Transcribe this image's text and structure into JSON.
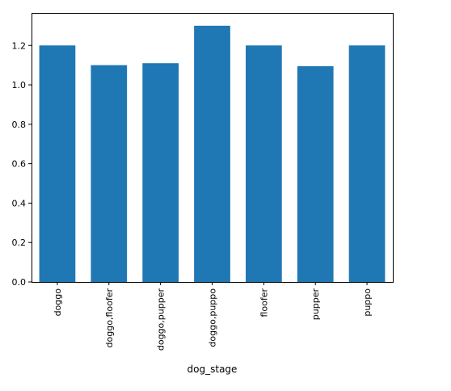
{
  "chart_data": {
    "type": "bar",
    "title": "",
    "xlabel": "dog_stage",
    "ylabel": "",
    "categories": [
      "doggo",
      "doggo,floofer",
      "doggo,pupper",
      "doggo,puppo",
      "floofer",
      "pupper",
      "puppo"
    ],
    "values": [
      1.2,
      1.1,
      1.11,
      1.3,
      1.2,
      1.095,
      1.2
    ],
    "ylim": [
      0,
      1.365
    ],
    "yticks": [
      0.0,
      0.2,
      0.4,
      0.6,
      0.8,
      1.0,
      1.2
    ],
    "ytick_labels": [
      "0.0",
      "0.2",
      "0.4",
      "0.6",
      "0.8",
      "1.0",
      "1.2"
    ],
    "grid": false,
    "legend": "none",
    "colors": {
      "bar": "#1f77b4",
      "axis": "#000000"
    }
  }
}
